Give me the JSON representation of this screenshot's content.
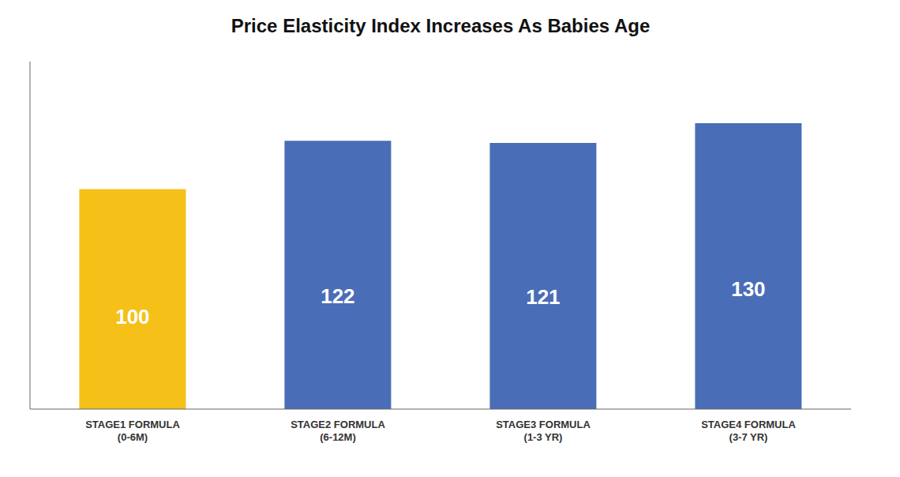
{
  "chart_data": {
    "type": "bar",
    "title": "Price Elasticity Index Increases As Babies Age",
    "categories": [
      "STAGE1 FORMULA\n(0-6M)",
      "STAGE2 FORMULA\n(6-12M)",
      "STAGE3 FORMULA\n(1-3 YR)",
      "STAGE4 FORMULA\n(3-7 YR)"
    ],
    "values": [
      100,
      122,
      121,
      130
    ],
    "colors": [
      "#F5C118",
      "#4A6DB8",
      "#4A6DB8",
      "#4A6DB8"
    ],
    "ylim": [
      0,
      158
    ],
    "data_labels": true,
    "tick_labels": "x",
    "grid": false
  }
}
